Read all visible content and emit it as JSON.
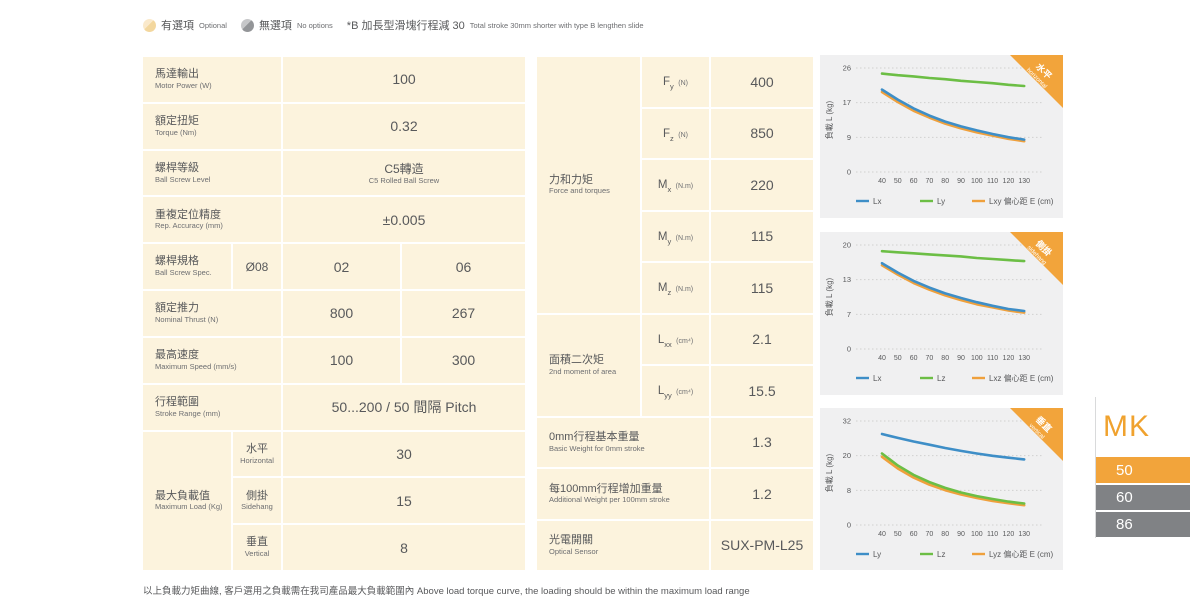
{
  "colors": {
    "accent_orange": "#F2A43B",
    "cell_cream": "#FCF3DD",
    "line_blue": "#3E8EC7",
    "line_green": "#6CBE45",
    "line_orange": "#EFA03C",
    "bar_gray": "#808285",
    "text_dark": "#58595B",
    "text_gray": "#6D6E71",
    "panel_gray": "#F0F0F1"
  },
  "top_legend": {
    "optional_zh": "有選項",
    "optional_en": "Optional",
    "no_options_zh": "無選項",
    "no_options_en": "No options",
    "note_zh": "*B 加長型滑塊行程減 30",
    "note_en": "Total stroke 30mm shorter with type B lengthen slide"
  },
  "spec_table": {
    "rows": [
      {
        "zh": "馬達輸出",
        "en": "Motor Power (W)",
        "value": "100"
      },
      {
        "zh": "額定扭矩",
        "en": "Torque (Nm)",
        "value": "0.32"
      },
      {
        "zh": "螺桿等級",
        "en": "Ball Screw Level",
        "value_zh": "C5轉造",
        "value_en": "C5 Rolled Ball Screw"
      },
      {
        "zh": "重複定位精度",
        "en": "Rep. Accuracy (mm)",
        "value": "±0.005"
      },
      {
        "zh": "螺桿規格",
        "en": "Ball Screw Spec.",
        "diameter": "Ø08",
        "values": [
          "02",
          "06"
        ]
      },
      {
        "zh": "額定推力",
        "en": "Nominal Thrust (N)",
        "values": [
          "800",
          "267"
        ]
      },
      {
        "zh": "最高速度",
        "en": "Maximum Speed (mm/s)",
        "values": [
          "100",
          "300"
        ]
      },
      {
        "zh": "行程範圍",
        "en": "Stroke Range (mm)",
        "value": "50...200 / 50 間隔 Pitch"
      },
      {
        "zh": "最大負載值",
        "en": "Maximum Load (Kg)",
        "subrows": [
          {
            "zh": "水平",
            "en": "Horizontal",
            "value": "30"
          },
          {
            "zh": "側掛",
            "en": "Sidehang",
            "value": "15"
          },
          {
            "zh": "垂直",
            "en": "Vertical",
            "value": "8"
          }
        ]
      }
    ]
  },
  "force_table": {
    "group1": {
      "zh": "力和力矩",
      "en": "Force and torques",
      "rows": [
        {
          "base": "F",
          "sub": "y",
          "unit": "(N)",
          "value": "400"
        },
        {
          "base": "F",
          "sub": "z",
          "unit": "(N)",
          "value": "850"
        },
        {
          "base": "M",
          "sub": "x",
          "unit": "(N.m)",
          "value": "220"
        },
        {
          "base": "M",
          "sub": "y",
          "unit": "(N.m)",
          "value": "115"
        },
        {
          "base": "M",
          "sub": "z",
          "unit": "(N.m)",
          "value": "115"
        }
      ]
    },
    "group2": {
      "zh": "面積二次矩",
      "en": "2nd moment of area",
      "rows": [
        {
          "base": "L",
          "sub": "xx",
          "unit": "(cm⁴)",
          "value": "2.1"
        },
        {
          "base": "L",
          "sub": "yy",
          "unit": "(cm⁴)",
          "value": "15.5"
        }
      ]
    },
    "extra_rows": [
      {
        "zh": "0mm行程基本重量",
        "en": "Basic Weight for 0mm stroke",
        "value": "1.3"
      },
      {
        "zh": "每100mm行程增加重量",
        "en": "Additional Weight per 100mm stroke",
        "value": "1.2"
      },
      {
        "zh": "光電開關",
        "en": "Optical Sensor",
        "value": "SUX-PM-L25"
      }
    ]
  },
  "chart_data": [
    {
      "type": "line",
      "badge_zh": "水平",
      "badge_en": "horizontal",
      "ylabel": "負載 L (kg)",
      "yticks": [
        26,
        17,
        9,
        0
      ],
      "ymax": 26,
      "x": [
        40,
        50,
        60,
        70,
        80,
        90,
        100,
        110,
        120,
        130
      ],
      "legend_suffix": "偏心距 E (cm)",
      "series": [
        {
          "name": "Lx",
          "color": "#3E8EC7",
          "values": [
            20.6,
            18.1,
            15.9,
            14.1,
            12.6,
            11.4,
            10.4,
            9.5,
            8.7,
            8.1
          ]
        },
        {
          "name": "Ly",
          "color": "#6CBE45",
          "values": [
            24.6,
            24.2,
            23.9,
            23.5,
            23.2,
            22.8,
            22.5,
            22.2,
            21.8,
            21.5
          ]
        },
        {
          "name": "Lxy",
          "color": "#EFA03C",
          "values": [
            20.0,
            17.5,
            15.3,
            13.6,
            12.1,
            10.9,
            9.9,
            9.1,
            8.3,
            7.7
          ]
        }
      ]
    },
    {
      "type": "line",
      "badge_zh": "側掛",
      "badge_en": "sidehang",
      "ylabel": "負載 L (kg)",
      "yticks": [
        20,
        13,
        7,
        0
      ],
      "ymax": 20,
      "x": [
        40,
        50,
        60,
        70,
        80,
        90,
        100,
        110,
        120,
        130
      ],
      "legend_suffix": "偏心距 E (cm)",
      "series": [
        {
          "name": "Lx",
          "color": "#3E8EC7",
          "values": [
            16.5,
            14.7,
            13.1,
            11.8,
            10.7,
            9.8,
            9.0,
            8.3,
            7.7,
            7.3
          ]
        },
        {
          "name": "Lz",
          "color": "#6CBE45",
          "values": [
            18.8,
            18.6,
            18.4,
            18.2,
            18.0,
            17.8,
            17.5,
            17.3,
            17.1,
            16.9
          ]
        },
        {
          "name": "Lxz",
          "color": "#EFA03C",
          "values": [
            16.1,
            14.3,
            12.7,
            11.4,
            10.3,
            9.4,
            8.6,
            8.0,
            7.4,
            7.0
          ]
        }
      ]
    },
    {
      "type": "line",
      "badge_zh": "垂直",
      "badge_en": "vertical",
      "ylabel": "負載 L (kg)",
      "yticks": [
        32,
        20,
        8,
        0
      ],
      "ymax": 32,
      "x": [
        40,
        50,
        60,
        70,
        80,
        90,
        100,
        110,
        120,
        130
      ],
      "legend_suffix": "偏心距 E (cm)",
      "series": [
        {
          "name": "Ly",
          "color": "#3E8EC7",
          "values": [
            28.0,
            26.8,
            25.7,
            24.7,
            23.7,
            22.8,
            22.0,
            21.3,
            20.7,
            20.2
          ]
        },
        {
          "name": "Lz",
          "color": "#6CBE45",
          "values": [
            22.0,
            18.3,
            15.4,
            13.2,
            11.4,
            10.0,
            8.9,
            8.0,
            7.2,
            6.6
          ]
        },
        {
          "name": "Lyz",
          "color": "#EFA03C",
          "values": [
            21.0,
            17.4,
            14.6,
            12.4,
            10.7,
            9.4,
            8.3,
            7.4,
            6.7,
            6.1
          ]
        }
      ]
    }
  ],
  "sidebar": {
    "title": "MK",
    "items": [
      {
        "label": "50",
        "active": true
      },
      {
        "label": "60",
        "active": false
      },
      {
        "label": "86",
        "active": false
      }
    ]
  },
  "footer": "以上負載力矩曲線, 客戶選用之負載需在我司產品最大負載範圍內 Above load torque curve, the loading should be within the maximum load range"
}
